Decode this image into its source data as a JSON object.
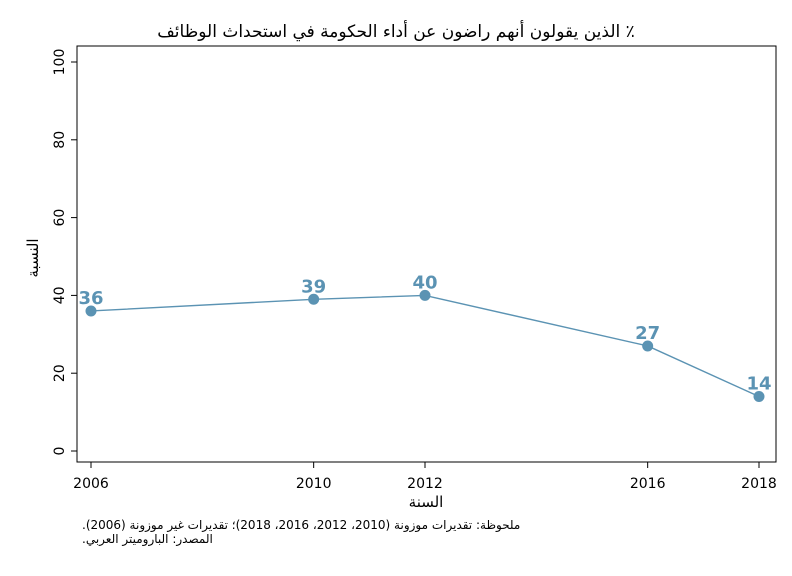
{
  "chart_data": {
    "type": "line",
    "title": "٪ الذين يقولون أنهم راضون عن أداء الحكومة في استحداث الوظائف",
    "xlabel": "السنة",
    "ylabel": "النسبة",
    "x": [
      2006,
      2010,
      2012,
      2016,
      2018
    ],
    "x_tick_labels": [
      "2006",
      "2010",
      "2012",
      "2016",
      "2018"
    ],
    "y_ticks": [
      0,
      20,
      40,
      60,
      80,
      100
    ],
    "y_tick_labels": [
      "0",
      "20",
      "40",
      "60",
      "80",
      "100"
    ],
    "ylim": [
      0,
      100
    ],
    "xlim": [
      2006,
      2018
    ],
    "series": [
      {
        "values": [
          36,
          39,
          40,
          27,
          14
        ],
        "labels": [
          "36",
          "39",
          "40",
          "27",
          "14"
        ],
        "color": "#5b93b3"
      }
    ],
    "grid": false,
    "notes": [
      "ملحوظة: تقديرات موزونة (2010، 2012، 2016، 2018)؛ تقديرات غير موزونة (2006).",
      "المصدر: الباروميتر العربي."
    ]
  }
}
